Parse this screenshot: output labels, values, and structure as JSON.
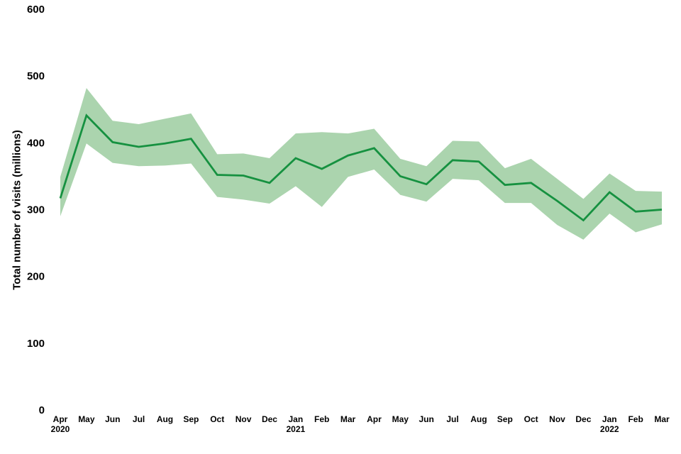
{
  "chart_data": {
    "type": "line",
    "title": "",
    "xlabel": "",
    "ylabel": "Total number of visits (millions)",
    "ylim": [
      0,
      600
    ],
    "yticks": [
      0,
      100,
      200,
      300,
      400,
      500,
      600
    ],
    "grid": false,
    "legend_position": "none",
    "x": [
      {
        "month": "Apr",
        "year": "2020"
      },
      {
        "month": "May",
        "year": ""
      },
      {
        "month": "Jun",
        "year": ""
      },
      {
        "month": "Jul",
        "year": ""
      },
      {
        "month": "Aug",
        "year": ""
      },
      {
        "month": "Sep",
        "year": ""
      },
      {
        "month": "Oct",
        "year": ""
      },
      {
        "month": "Nov",
        "year": ""
      },
      {
        "month": "Dec",
        "year": ""
      },
      {
        "month": "Jan",
        "year": "2021"
      },
      {
        "month": "Feb",
        "year": ""
      },
      {
        "month": "Mar",
        "year": ""
      },
      {
        "month": "Apr",
        "year": ""
      },
      {
        "month": "May",
        "year": ""
      },
      {
        "month": "Jun",
        "year": ""
      },
      {
        "month": "Jul",
        "year": ""
      },
      {
        "month": "Aug",
        "year": ""
      },
      {
        "month": "Sep",
        "year": ""
      },
      {
        "month": "Oct",
        "year": ""
      },
      {
        "month": "Nov",
        "year": ""
      },
      {
        "month": "Dec",
        "year": ""
      },
      {
        "month": "Jan",
        "year": "2022"
      },
      {
        "month": "Feb",
        "year": ""
      },
      {
        "month": "Mar",
        "year": ""
      }
    ],
    "series": [
      {
        "name": "Total number of visits",
        "role": "line",
        "values": [
          317,
          441,
          401,
          394,
          399,
          406,
          352,
          351,
          340,
          377,
          361,
          381,
          392,
          350,
          338,
          374,
          372,
          337,
          340,
          313,
          284,
          326,
          297,
          300
        ]
      },
      {
        "name": "Confidence interval upper bound",
        "role": "band-upper",
        "values": [
          349,
          482,
          433,
          428,
          436,
          444,
          383,
          384,
          377,
          414,
          416,
          414,
          421,
          376,
          365,
          403,
          402,
          362,
          376,
          346,
          316,
          354,
          328,
          327
        ]
      },
      {
        "name": "Confidence interval lower bound",
        "role": "band-lower",
        "values": [
          290,
          399,
          370,
          365,
          366,
          369,
          319,
          315,
          309,
          335,
          304,
          349,
          360,
          322,
          312,
          346,
          344,
          310,
          310,
          277,
          255,
          294,
          266,
          278
        ]
      }
    ],
    "colors": {
      "line": "#169140",
      "band": "#abd4ae",
      "text": "#000000",
      "background": "#ffffff"
    }
  }
}
